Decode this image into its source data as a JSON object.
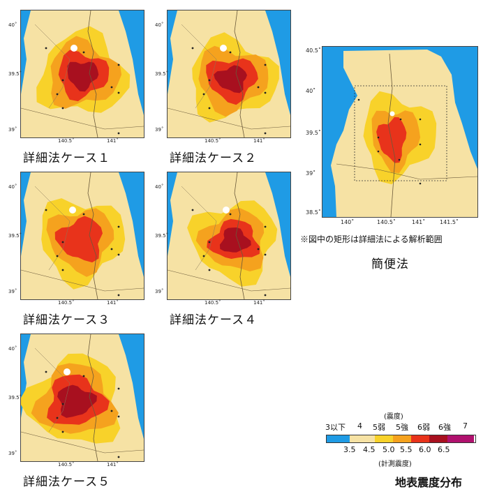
{
  "cases": [
    {
      "caption": "詳細法ケース１"
    },
    {
      "caption": "詳細法ケース２"
    },
    {
      "caption": "詳細法ケース３"
    },
    {
      "caption": "詳細法ケース４"
    },
    {
      "caption": "詳細法ケース５"
    }
  ],
  "detailed_ticks": {
    "lat": [
      "40˚",
      "39.5˚",
      "39˚"
    ],
    "lon": [
      "140.5˚",
      "141˚"
    ]
  },
  "simple": {
    "caption": "簡便法",
    "note": "※図中の矩形は詳細法による解析範囲",
    "lat": [
      "40.5˚",
      "40˚",
      "39.5˚",
      "39˚",
      "38.5˚"
    ],
    "lon": [
      "140˚",
      "140.5˚",
      "141˚",
      "141.5˚"
    ]
  },
  "legend": {
    "top_label": "(震度)",
    "classes": [
      "3以下",
      "4",
      "5弱",
      "5強",
      "6弱",
      "6強",
      "7"
    ],
    "values": [
      "3.5",
      "4.5",
      "5.0",
      "5.5",
      "6.0",
      "6.5"
    ],
    "bottom_label": "(計測震度)",
    "colors": [
      "#1f9be5",
      "#f6e2a4",
      "#f8d22a",
      "#f5a21e",
      "#e8331b",
      "#a8101f",
      "#b0116e"
    ]
  },
  "title": "地表震度分布",
  "colors": {
    "sea": "#1f9be5",
    "land_low": "#f6e2a4",
    "i5l": "#f8d22a",
    "i5u": "#f5a21e",
    "i6l": "#e8331b",
    "i6u": "#a8101f"
  }
}
